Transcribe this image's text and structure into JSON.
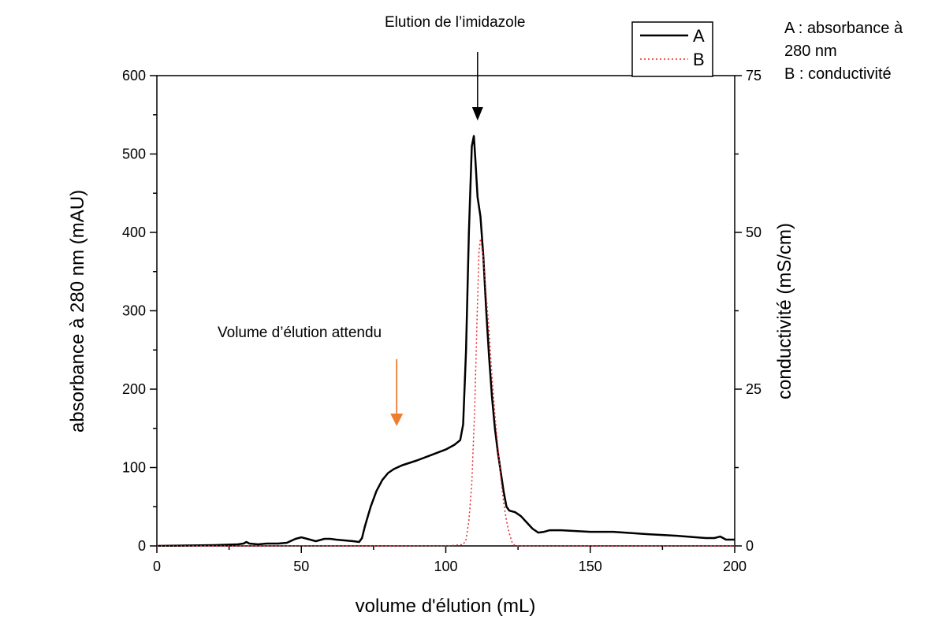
{
  "chart_data": {
    "type": "line",
    "xlabel": "volume d'élution (mL)",
    "ylabel": "absorbance à 280 nm (mAU)",
    "y2label": "conductivité (mS/cm)",
    "xlim": [
      0,
      200
    ],
    "ylim": [
      0,
      600
    ],
    "y2lim": [
      0,
      75
    ],
    "x_ticks": [
      "0",
      "50",
      "100",
      "150",
      "200"
    ],
    "y_ticks": [
      "0",
      "100",
      "200",
      "300",
      "400",
      "500",
      "600"
    ],
    "y2_ticks": [
      "0",
      "25",
      "50",
      "75"
    ],
    "legend": {
      "position": "top-right",
      "entries": [
        "A",
        "B"
      ]
    },
    "series": [
      {
        "name": "A",
        "axis": "left",
        "style": "solid",
        "color": "#000000",
        "points": [
          [
            0,
            0
          ],
          [
            10,
            0.5
          ],
          [
            20,
            1
          ],
          [
            28,
            2
          ],
          [
            30,
            3
          ],
          [
            31,
            5
          ],
          [
            32,
            3
          ],
          [
            35,
            2
          ],
          [
            38,
            3
          ],
          [
            42,
            3
          ],
          [
            45,
            4
          ],
          [
            48,
            9
          ],
          [
            50,
            11
          ],
          [
            52,
            9
          ],
          [
            55,
            6
          ],
          [
            58,
            9
          ],
          [
            60,
            9
          ],
          [
            62,
            8
          ],
          [
            65,
            7
          ],
          [
            68,
            6
          ],
          [
            70,
            5
          ],
          [
            71,
            10
          ],
          [
            72,
            25
          ],
          [
            74,
            50
          ],
          [
            76,
            70
          ],
          [
            78,
            84
          ],
          [
            80,
            93
          ],
          [
            82,
            98
          ],
          [
            85,
            103
          ],
          [
            90,
            109
          ],
          [
            95,
            116
          ],
          [
            100,
            123
          ],
          [
            103,
            129
          ],
          [
            105,
            135
          ],
          [
            106,
            155
          ],
          [
            107,
            250
          ],
          [
            108,
            400
          ],
          [
            109,
            510
          ],
          [
            109.7,
            523
          ],
          [
            110.3,
            490
          ],
          [
            111,
            445
          ],
          [
            112,
            420
          ],
          [
            113,
            370
          ],
          [
            114,
            300
          ],
          [
            115,
            240
          ],
          [
            116,
            190
          ],
          [
            117,
            150
          ],
          [
            118,
            120
          ],
          [
            119,
            95
          ],
          [
            120,
            70
          ],
          [
            121,
            50
          ],
          [
            122,
            45
          ],
          [
            124,
            43
          ],
          [
            126,
            38
          ],
          [
            128,
            30
          ],
          [
            130,
            22
          ],
          [
            132,
            17
          ],
          [
            134,
            18
          ],
          [
            136,
            20
          ],
          [
            140,
            20
          ],
          [
            150,
            18
          ],
          [
            158,
            18
          ],
          [
            170,
            15
          ],
          [
            180,
            13
          ],
          [
            190,
            10
          ],
          [
            193,
            10
          ],
          [
            195,
            12
          ],
          [
            197,
            8
          ],
          [
            200,
            8
          ]
        ]
      },
      {
        "name": "B",
        "axis": "right",
        "style": "dotted",
        "color": "#e8292b",
        "points": [
          [
            0,
            0
          ],
          [
            100,
            0
          ],
          [
            106,
            0.2
          ],
          [
            107,
            1
          ],
          [
            108,
            4
          ],
          [
            109,
            10
          ],
          [
            110,
            22
          ],
          [
            110.8,
            36
          ],
          [
            111.5,
            47
          ],
          [
            112,
            49
          ],
          [
            113,
            46
          ],
          [
            114,
            40
          ],
          [
            115,
            34
          ],
          [
            116,
            27
          ],
          [
            117,
            21
          ],
          [
            118,
            16
          ],
          [
            119,
            11
          ],
          [
            120,
            7
          ],
          [
            121,
            4
          ],
          [
            122,
            2
          ],
          [
            123,
            0.5
          ],
          [
            124,
            0
          ],
          [
            200,
            0
          ]
        ]
      }
    ]
  },
  "annotations": {
    "elution_label": "Elution de l’imidazole",
    "expected_label": "Volume d’élution attendu",
    "elution_arrow": {
      "x": 111,
      "color": "#000000"
    },
    "expected_arrow": {
      "x": 83,
      "color": "#ed7d31"
    }
  },
  "side_note": {
    "line1": "A : absorbance à",
    "line2": "280 nm",
    "line3": "B : conductivité"
  }
}
